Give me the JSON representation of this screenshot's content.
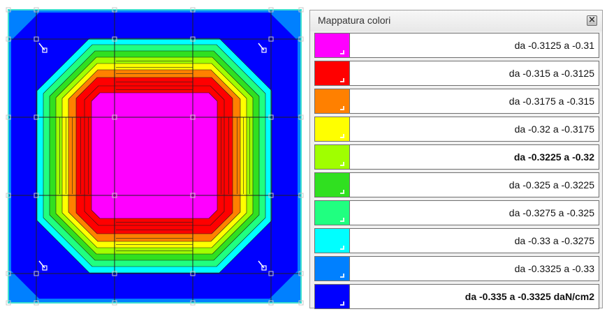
{
  "panel": {
    "title": "Mappatura colori",
    "close_icon": "close-icon"
  },
  "legend": [
    {
      "label": "da -0.3125 a -0.31",
      "color": "#ff00ff",
      "bold": false
    },
    {
      "label": "da -0.315 a -0.3125",
      "color": "#ff0000",
      "bold": false
    },
    {
      "label": "da -0.3175 a -0.315",
      "color": "#ff8000",
      "bold": false
    },
    {
      "label": "da -0.32 a -0.3175",
      "color": "#ffff00",
      "bold": false
    },
    {
      "label": "da -0.3225 a -0.32",
      "color": "#a0ff00",
      "bold": true
    },
    {
      "label": "da -0.325 a -0.3225",
      "color": "#30e020",
      "bold": false
    },
    {
      "label": "da -0.3275 a -0.325",
      "color": "#20ff80",
      "bold": false
    },
    {
      "label": "da -0.33 a -0.3275",
      "color": "#00ffff",
      "bold": false
    },
    {
      "label": "da -0.3325 a -0.33",
      "color": "#0080ff",
      "bold": false
    },
    {
      "label": "da -0.335 a -0.3325 daN/cm2",
      "color": "#0000ff",
      "bold": true
    }
  ],
  "plot": {
    "outline_color": "#40e0d0",
    "grid_color": "#202020",
    "node_color": "#c8c8c8"
  }
}
